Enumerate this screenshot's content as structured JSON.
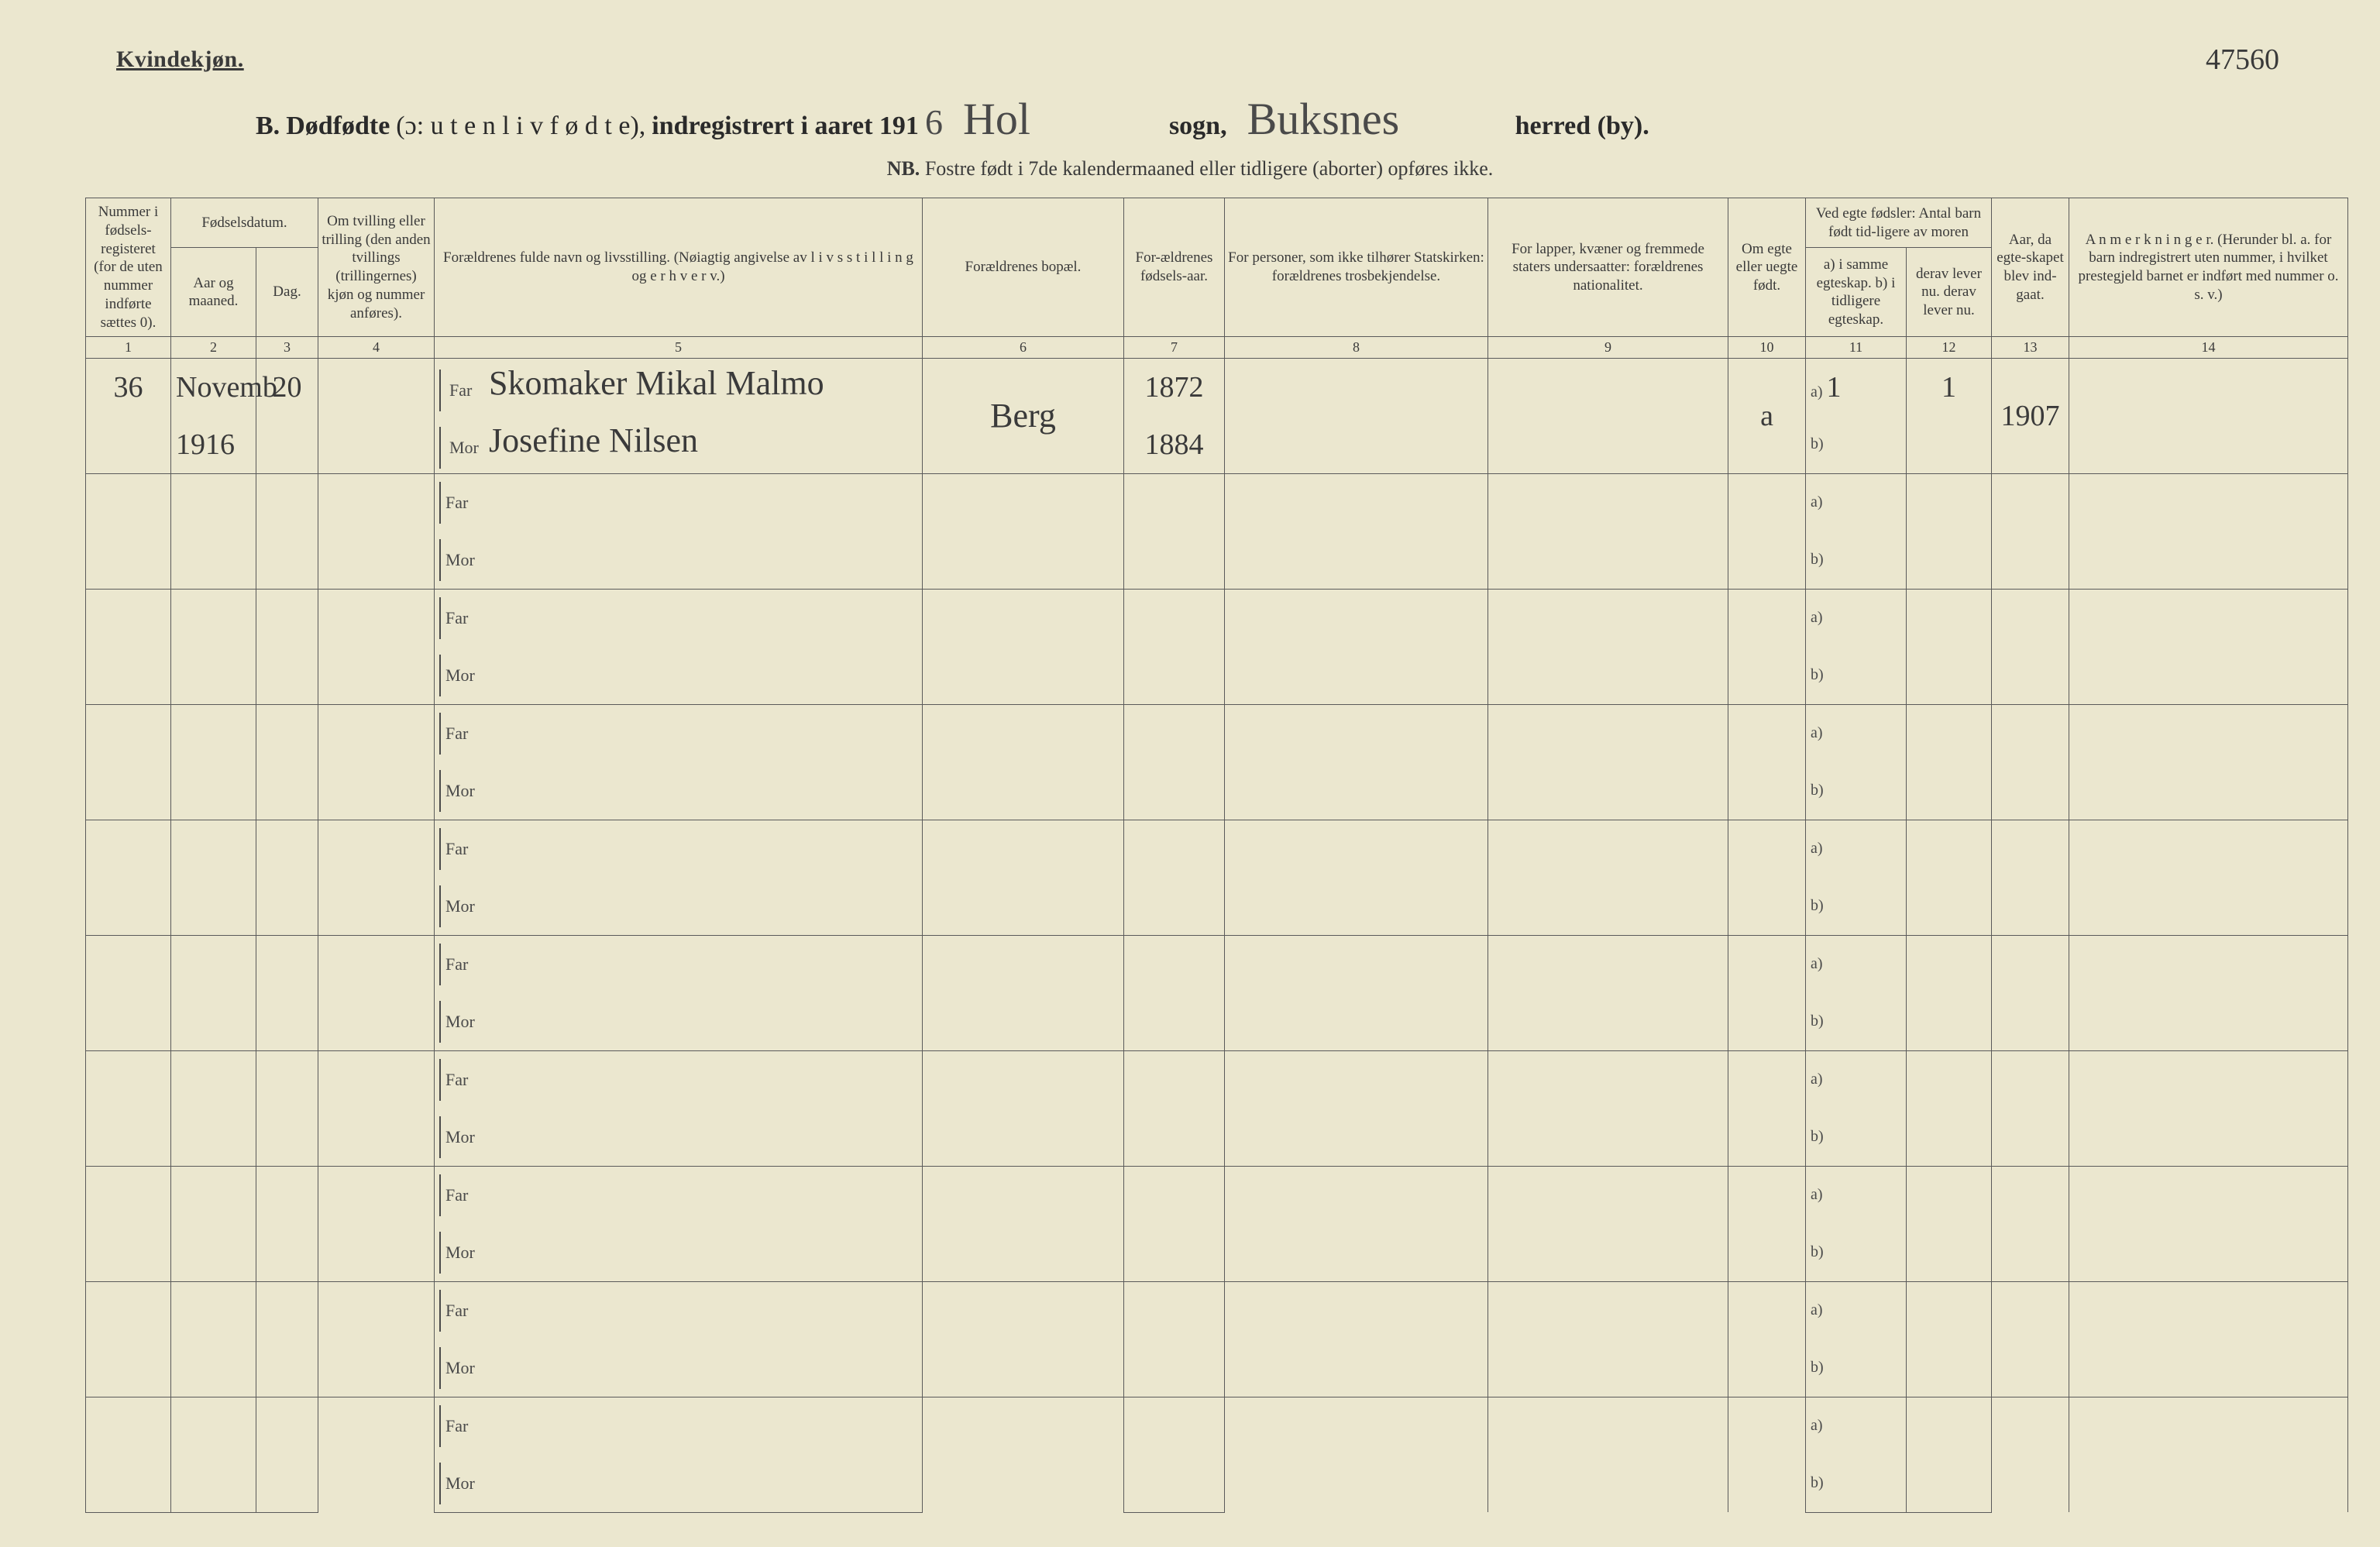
{
  "corner_note": "47560",
  "gender_label": "Kvindekjøn.",
  "title": {
    "prefix": "B.",
    "main": "Dødfødte",
    "paren": "(ɔ:  u t e n  l i v  f ø d t e),",
    "registered": "indregistrert i aaret 191",
    "year_suffix": "6",
    "sogn_hand": "Hol",
    "sogn_label": "sogn,",
    "herred_hand": "Buksnes",
    "herred_label": "herred (by)."
  },
  "subtitle": {
    "nb": "NB.",
    "text": "Fostre født i 7de kalendermaaned eller tidligere (aborter) opføres ikke."
  },
  "headers": {
    "c1": "Nummer i fødsels-registeret (for de uten nummer indførte sættes 0).",
    "c2_group": "Fødselsdatum.",
    "c2": "Aar og maaned.",
    "c3": "Dag.",
    "c4": "Om tvilling eller trilling (den anden tvillings (trillingernes) kjøn og nummer anføres).",
    "c5": "Forældrenes fulde navn og livsstilling. (Nøiagtig angivelse av l i v s s t i l l i n g og e r h v e r v.)",
    "c6": "Forældrenes bopæl.",
    "c7": "For-ældrenes fødsels-aar.",
    "c8": "For personer, som ikke tilhører Statskirken: forældrenes trosbekjendelse.",
    "c9": "For lapper, kvæner og fremmede staters undersaatter: forældrenes nationalitet.",
    "c10": "Om egte eller uegte født.",
    "c11_12_top": "Ved egte fødsler: Antal barn født tid-ligere av moren",
    "c11": "a) i samme egteskap. b) i tidligere egteskap.",
    "c12": "derav lever nu. derav lever nu.",
    "c13": "Aar, da egte-skapet blev ind-gaat.",
    "c14": "A n m e r k n i n g e r. (Herunder bl. a. for barn indregistrert uten nummer, i hvilket prestegjeld barnet er indført med nummer o. s. v.)"
  },
  "colnums": [
    "1",
    "2",
    "3",
    "4",
    "5",
    "6",
    "7",
    "8",
    "9",
    "10",
    "11",
    "12",
    "13",
    "14"
  ],
  "labels": {
    "far": "Far",
    "mor": "Mor",
    "a": "a)",
    "b": "b)"
  },
  "entry": {
    "num": "36",
    "month": "Novemb",
    "day": "20",
    "year_line": "1916",
    "far_name": "Skomaker Mikal Malmo",
    "mor_name": "Josefine Nilsen",
    "bopael": "Berg",
    "far_year": "1872",
    "mor_year": "1884",
    "egte": "a",
    "a_same": "1",
    "a_lever": "1",
    "marriage_year": "1907"
  },
  "blank_rows": 9,
  "styling": {
    "page_bg": "#ebe7cf",
    "line_color": "#5a5a5a",
    "ink_color": "#3a3a3a",
    "hand_color": "#4a4a4a",
    "title_fontsize": 34,
    "header_fontsize": 19,
    "body_fontsize": 20,
    "hand_fontsize": 44
  }
}
